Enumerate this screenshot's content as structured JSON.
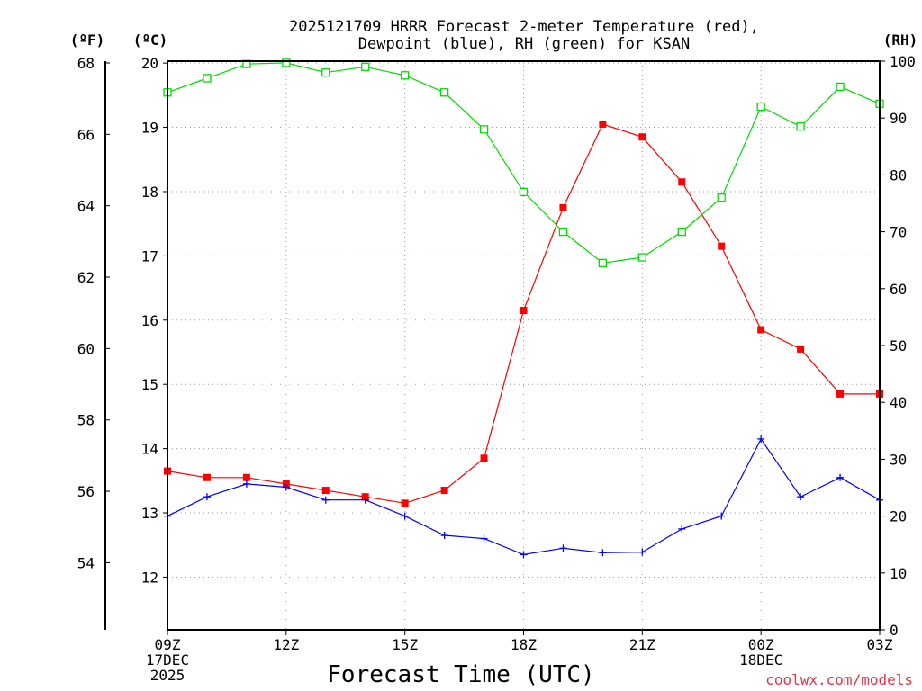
{
  "chart_data": {
    "type": "line",
    "title_line1": "2025121709 HRRR Forecast 2-meter Temperature (red),",
    "title_line2": "Dewpoint (blue), RH (green) for KSAN",
    "xlabel": "Forecast Time (UTC)",
    "credit": "coolwx.com/models",
    "units": {
      "fahrenheit": "(ºF)",
      "celsius": "(ºC)",
      "rh": "(RH)"
    },
    "hours": [
      0,
      1,
      2,
      3,
      4,
      5,
      6,
      7,
      8,
      9,
      10,
      11,
      12,
      13,
      14,
      15,
      16,
      17,
      18
    ],
    "x_ticks": [
      {
        "hour": 0,
        "lines": [
          "09Z",
          "17DEC",
          "2025"
        ]
      },
      {
        "hour": 3,
        "lines": [
          "12Z"
        ]
      },
      {
        "hour": 6,
        "lines": [
          "15Z"
        ]
      },
      {
        "hour": 9,
        "lines": [
          "18Z"
        ]
      },
      {
        "hour": 12,
        "lines": [
          "21Z"
        ]
      },
      {
        "hour": 15,
        "lines": [
          "00Z",
          "18DEC"
        ]
      },
      {
        "hour": 18,
        "lines": [
          "03Z"
        ]
      }
    ],
    "celsius_axis": {
      "range": [
        11.18,
        20.03
      ],
      "ticks": [
        12,
        13,
        14,
        15,
        16,
        17,
        18,
        19,
        20
      ]
    },
    "fahrenheit_axis": {
      "range": [
        52.12,
        68.05
      ],
      "ticks": [
        54,
        56,
        58,
        60,
        62,
        64,
        66,
        68
      ]
    },
    "rh_axis": {
      "range": [
        0,
        100
      ],
      "ticks": [
        0,
        10,
        20,
        30,
        40,
        50,
        60,
        70,
        80,
        90,
        100
      ]
    },
    "series": [
      {
        "name": "Temperature",
        "axis": "celsius",
        "color": "#ff0000",
        "marker": "filled-square",
        "values": [
          13.65,
          13.55,
          13.55,
          13.45,
          13.35,
          13.25,
          13.15,
          13.35,
          13.85,
          16.15,
          17.75,
          19.05,
          18.85,
          18.15,
          17.15,
          15.85,
          15.55,
          14.85,
          14.85
        ]
      },
      {
        "name": "Dewpoint",
        "axis": "celsius",
        "color": "#0000ff",
        "marker": "plus",
        "values": [
          12.95,
          13.25,
          13.45,
          13.4,
          13.2,
          13.2,
          12.95,
          12.65,
          12.6,
          12.35,
          12.45,
          12.38,
          12.39,
          12.75,
          12.95,
          14.15,
          13.25,
          13.55,
          13.2
        ]
      },
      {
        "name": "RH",
        "axis": "rh",
        "color": "#00dd00",
        "marker": "open-square",
        "values": [
          94.5,
          97,
          99.5,
          99.7,
          98,
          99,
          97.5,
          94.5,
          88,
          77,
          70,
          64.5,
          65.5,
          70,
          76,
          92,
          88.5,
          95.5,
          92.5
        ]
      }
    ]
  }
}
